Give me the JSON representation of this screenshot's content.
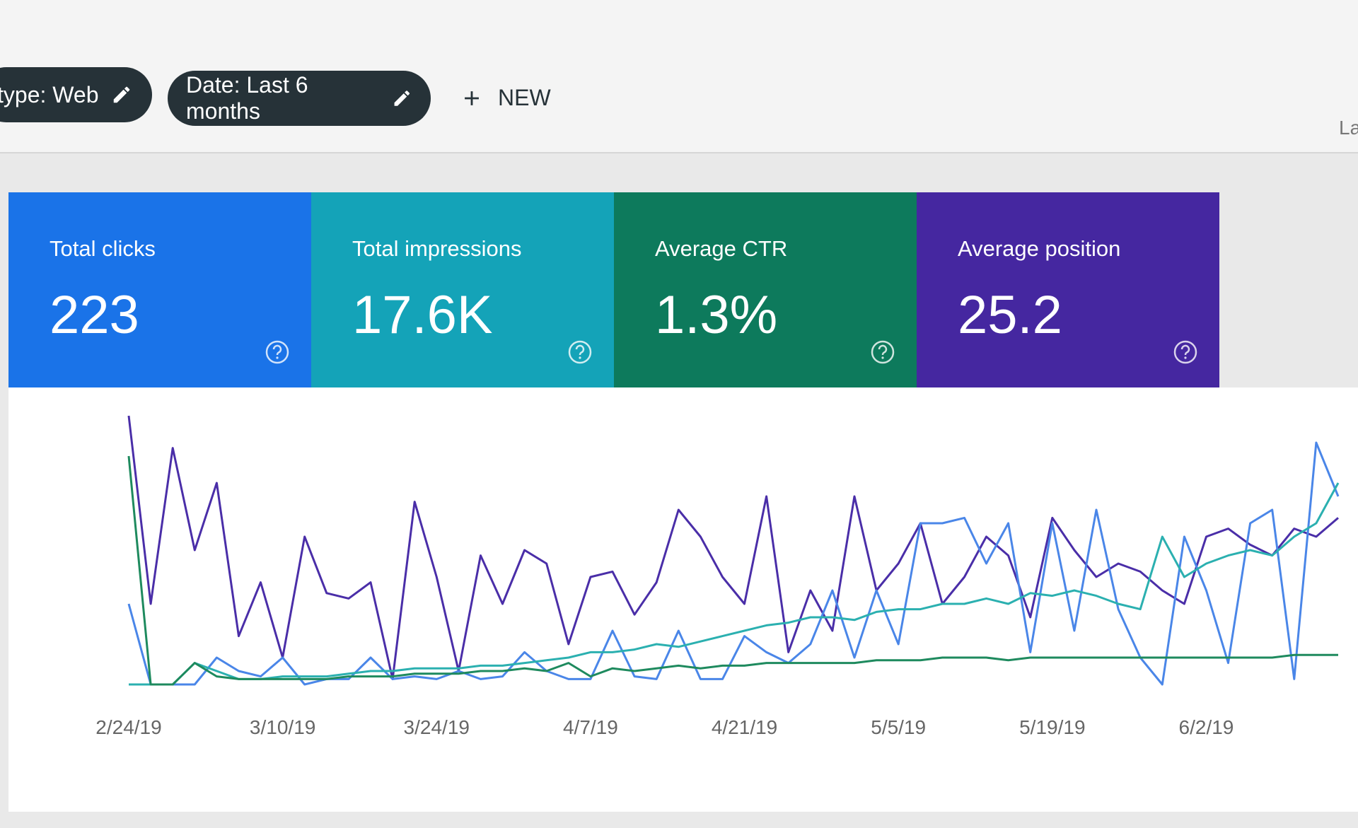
{
  "toolbar": {
    "filters": [
      "type: Web",
      "Date: Last 6 months"
    ],
    "new_button": "NEW",
    "right_text": "La"
  },
  "cards": [
    {
      "title": "Total clicks",
      "value": "223",
      "color": "#1a73e8"
    },
    {
      "title": "Total impressions",
      "value": "17.6K",
      "color": "#14a3b8"
    },
    {
      "title": "Average CTR",
      "value": "1.3%",
      "color": "#0d7a5c"
    },
    {
      "title": "Average position",
      "value": "25.2",
      "color": "#4527a0"
    }
  ],
  "chart_data": {
    "type": "line",
    "ylim": [
      0,
      100
    ],
    "categories": [
      "2/24/19",
      null,
      null,
      null,
      null,
      null,
      null,
      "3/10/19",
      null,
      null,
      null,
      null,
      null,
      null,
      "3/24/19",
      null,
      null,
      null,
      null,
      null,
      null,
      "4/7/19",
      null,
      null,
      null,
      null,
      null,
      null,
      "4/21/19",
      null,
      null,
      null,
      null,
      null,
      null,
      "5/5/19",
      null,
      null,
      null,
      null,
      null,
      null,
      "5/19/19",
      null,
      null,
      null,
      null,
      null,
      null,
      "6/2/19",
      null,
      null,
      null,
      null,
      null,
      null
    ],
    "series": [
      {
        "name": "Average position",
        "color": "#4a2ea8",
        "values": [
          100,
          30,
          88,
          50,
          75,
          18,
          38,
          10,
          55,
          34,
          32,
          38,
          2,
          68,
          40,
          5,
          48,
          30,
          50,
          45,
          15,
          40,
          42,
          26,
          38,
          65,
          55,
          40,
          30,
          70,
          12,
          35,
          20,
          70,
          35,
          45,
          60,
          30,
          40,
          55,
          48,
          25,
          62,
          50,
          40,
          45,
          42,
          35,
          30,
          55,
          58,
          52,
          48,
          58,
          55,
          62
        ]
      },
      {
        "name": "Total clicks",
        "color": "#4a86e8",
        "values": [
          30,
          0,
          0,
          0,
          10,
          5,
          3,
          10,
          0,
          2,
          2,
          10,
          2,
          3,
          2,
          5,
          2,
          3,
          12,
          5,
          2,
          2,
          20,
          3,
          2,
          20,
          2,
          2,
          18,
          12,
          8,
          15,
          35,
          10,
          35,
          15,
          60,
          60,
          62,
          45,
          60,
          12,
          60,
          20,
          65,
          28,
          10,
          0,
          55,
          35,
          8,
          60,
          65,
          2,
          90,
          70
        ]
      },
      {
        "name": "Total impressions",
        "color": "#2bb0b0",
        "values": [
          0,
          0,
          0,
          8,
          5,
          2,
          2,
          3,
          3,
          3,
          4,
          5,
          5,
          6,
          6,
          6,
          7,
          7,
          8,
          9,
          10,
          12,
          12,
          13,
          15,
          14,
          16,
          18,
          20,
          22,
          23,
          25,
          25,
          24,
          27,
          28,
          28,
          30,
          30,
          32,
          30,
          34,
          33,
          35,
          33,
          30,
          28,
          55,
          40,
          45,
          48,
          50,
          48,
          55,
          60,
          75
        ]
      },
      {
        "name": "Average CTR",
        "color": "#1e8a5e",
        "values": [
          85,
          0,
          0,
          8,
          3,
          2,
          2,
          2,
          2,
          2,
          3,
          3,
          3,
          4,
          4,
          4,
          5,
          5,
          6,
          5,
          8,
          3,
          6,
          5,
          6,
          7,
          6,
          7,
          7,
          8,
          8,
          8,
          8,
          8,
          9,
          9,
          9,
          10,
          10,
          10,
          9,
          10,
          10,
          10,
          10,
          10,
          10,
          10,
          10,
          10,
          10,
          10,
          10,
          11,
          11,
          11
        ]
      }
    ]
  }
}
